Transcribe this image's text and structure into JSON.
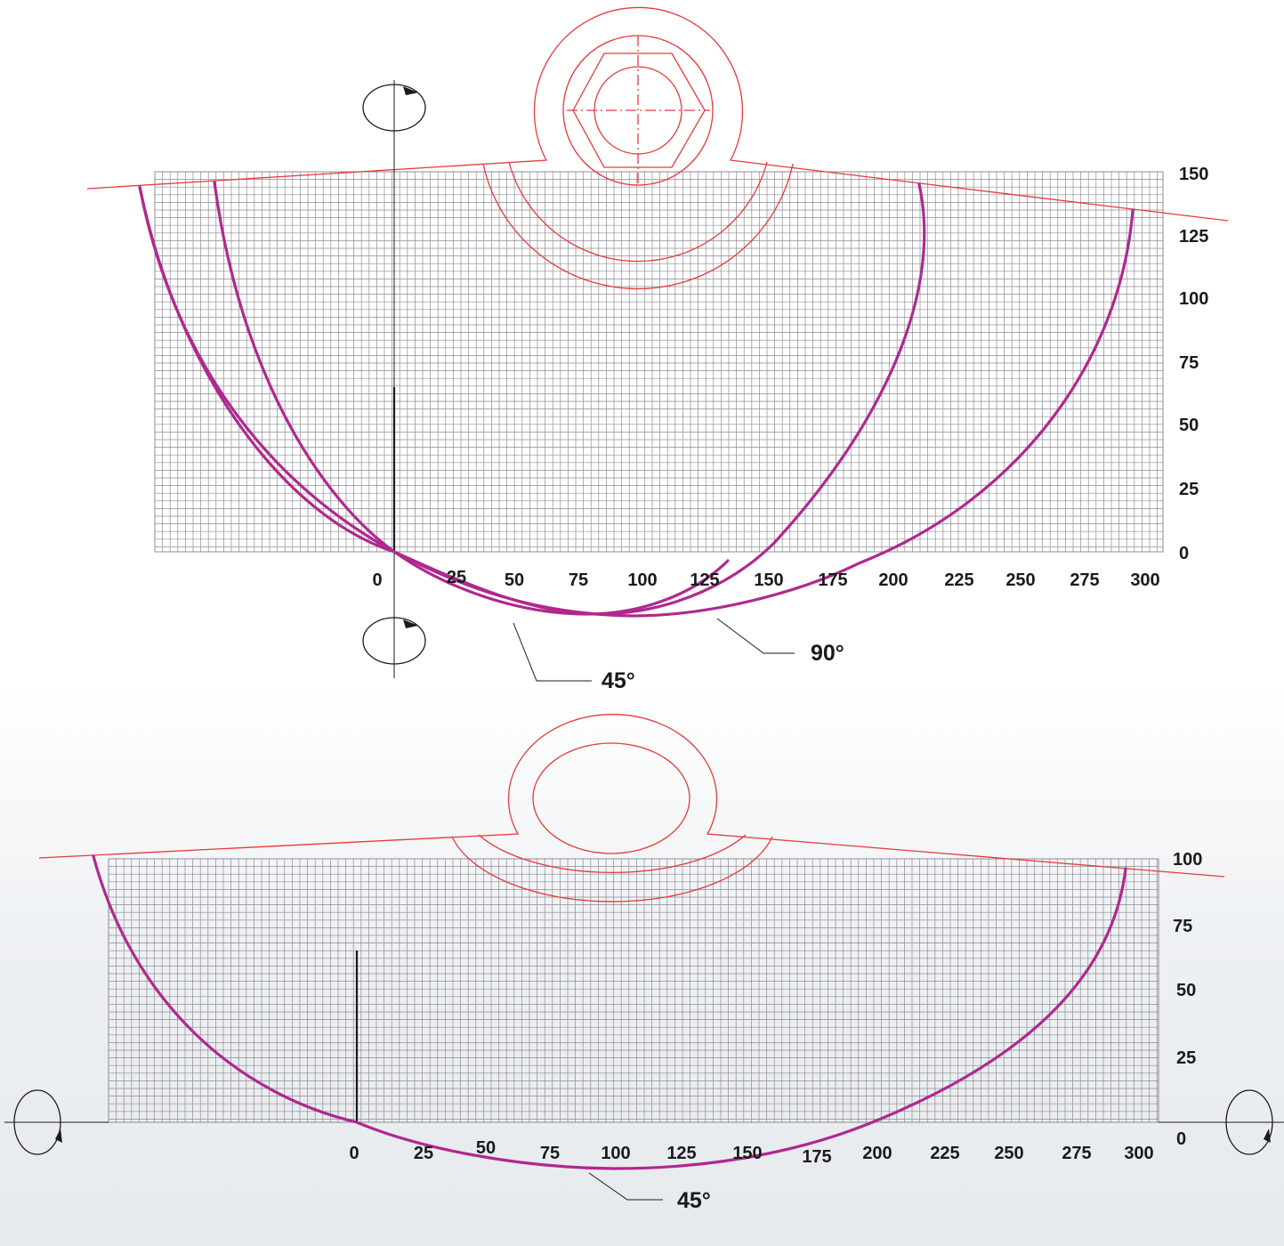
{
  "diagrams": [
    {
      "id": "top",
      "y_ticks": [
        "150",
        "125",
        "100",
        "75",
        "50",
        "25",
        "0"
      ],
      "x_ticks": [
        "0",
        "25",
        "50",
        "75",
        "100",
        "125",
        "150",
        "175",
        "200",
        "225",
        "250",
        "275",
        "300"
      ],
      "curve_labels": [
        "45°",
        "90°"
      ],
      "rotation_indicators": 2
    },
    {
      "id": "bottom",
      "y_ticks": [
        "100",
        "75",
        "50",
        "25",
        "0"
      ],
      "x_ticks": [
        "0",
        "25",
        "50",
        "75",
        "100",
        "125",
        "150",
        "175",
        "200",
        "225",
        "250",
        "275",
        "300"
      ],
      "curve_labels": [
        "45°"
      ],
      "rotation_indicators": 2
    }
  ],
  "colors": {
    "grid": "#8c8c96",
    "outline": "#e8393a",
    "curve": "#b0288f",
    "axis": "#1a1a1a",
    "text": "#1a1a1a"
  }
}
